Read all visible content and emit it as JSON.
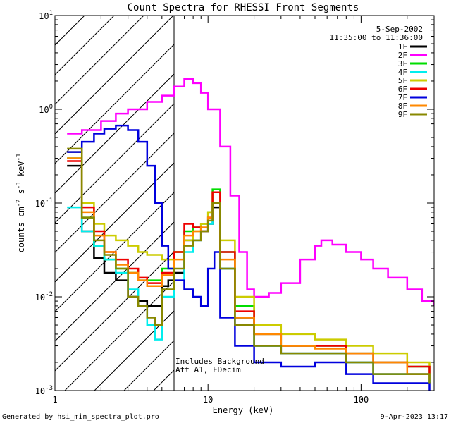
{
  "chart_data": {
    "type": "line",
    "title": "Count Spectra for RHESSI Front Segments",
    "xlabel": "Energy (keV)",
    "ylabel_parts": [
      "counts cm",
      "-2",
      " s",
      "-1",
      " keV",
      "-1"
    ],
    "xscale": "log",
    "yscale": "log",
    "xlim": [
      1,
      300
    ],
    "ylim": [
      0.001,
      10
    ],
    "x_ticks": [
      {
        "value": 1,
        "label": "1"
      },
      {
        "value": 10,
        "label": "10"
      },
      {
        "value": 100,
        "label": "100"
      }
    ],
    "y_ticks": [
      {
        "value": 0.001,
        "base": "10",
        "exp": "-3"
      },
      {
        "value": 0.01,
        "base": "10",
        "exp": "-2"
      },
      {
        "value": 0.1,
        "base": "10",
        "exp": "-1"
      },
      {
        "value": 1,
        "base": "10",
        "exp": "0"
      },
      {
        "value": 10,
        "base": "10",
        "exp": "1"
      }
    ],
    "date": "5-Sep-2002",
    "time_range": "11:35:00 to 11:36:00",
    "legend_position": "top-right",
    "shaded_region": {
      "x_start": 1,
      "x_end": 6
    },
    "annotations": [
      "Includes Background",
      "Att A1, FDecim"
    ],
    "footer_left": "Generated by hsi_min_spectra_plot.pro",
    "footer_right": "9-Apr-2023 13:17",
    "series": [
      {
        "name": "1F",
        "color": "#000000",
        "x": [
          1.2,
          1.5,
          1.8,
          2.1,
          2.5,
          3.0,
          3.5,
          4.0,
          5.0,
          5.5,
          6.0,
          7.0,
          8.0,
          9.0,
          10.0,
          10.7,
          12.0,
          15.0,
          20.0,
          30.0,
          50.0,
          80.0,
          120.0,
          200.0,
          280.0
        ],
        "y": [
          0.25,
          0.05,
          0.026,
          0.018,
          0.015,
          0.01,
          0.009,
          0.008,
          0.013,
          0.015,
          0.018,
          0.04,
          0.04,
          0.05,
          0.06,
          0.09,
          0.02,
          0.006,
          0.003,
          0.0025,
          0.0025,
          0.002,
          0.0015,
          0.0015,
          0.0012
        ]
      },
      {
        "name": "2F",
        "color": "#ff00ff",
        "x": [
          1.2,
          1.5,
          2.0,
          2.5,
          3.0,
          4.0,
          5.0,
          6.0,
          7.0,
          8.0,
          9.0,
          10.0,
          12.0,
          14.0,
          16.0,
          18.0,
          20.0,
          25.0,
          30.0,
          40.0,
          50.0,
          55.0,
          65.0,
          80.0,
          100.0,
          120.0,
          150.0,
          200.0,
          250.0,
          300.0
        ],
        "y": [
          0.55,
          0.6,
          0.75,
          0.9,
          1.0,
          1.2,
          1.4,
          1.75,
          2.1,
          1.9,
          1.5,
          1.0,
          0.4,
          0.12,
          0.03,
          0.012,
          0.01,
          0.011,
          0.014,
          0.025,
          0.035,
          0.04,
          0.036,
          0.03,
          0.025,
          0.02,
          0.016,
          0.012,
          0.009,
          0.008
        ]
      },
      {
        "name": "3F",
        "color": "#00dd00",
        "x": [
          1.2,
          1.5,
          1.8,
          2.1,
          2.5,
          3.0,
          3.5,
          4.0,
          5.0,
          6.0,
          7.0,
          8.0,
          9.0,
          10.0,
          10.7,
          12.0,
          15.0,
          20.0,
          30.0,
          50.0,
          80.0,
          120.0,
          200.0,
          280.0
        ],
        "y": [
          0.3,
          0.07,
          0.035,
          0.025,
          0.02,
          0.018,
          0.015,
          0.015,
          0.02,
          0.03,
          0.05,
          0.055,
          0.06,
          0.08,
          0.14,
          0.03,
          0.008,
          0.004,
          0.003,
          0.003,
          0.0025,
          0.002,
          0.0018,
          0.0015
        ]
      },
      {
        "name": "4F",
        "color": "#00eeee",
        "x": [
          1.2,
          1.5,
          1.8,
          2.1,
          2.5,
          3.0,
          3.5,
          4.0,
          4.5,
          5.0,
          6.0,
          7.0,
          8.0,
          9.0,
          10.0,
          10.7,
          12.0,
          15.0,
          20.0,
          30.0,
          50.0,
          80.0,
          120.0,
          200.0,
          280.0
        ],
        "y": [
          0.09,
          0.05,
          0.035,
          0.025,
          0.018,
          0.012,
          0.008,
          0.005,
          0.0035,
          0.01,
          0.015,
          0.03,
          0.04,
          0.05,
          0.06,
          0.1,
          0.02,
          0.005,
          0.003,
          0.0025,
          0.0025,
          0.002,
          0.0015,
          0.0015,
          0.0012
        ]
      },
      {
        "name": "5F",
        "color": "#cccc00",
        "x": [
          1.2,
          1.5,
          1.8,
          2.1,
          2.5,
          3.0,
          3.5,
          4.0,
          5.0,
          6.0,
          7.0,
          8.0,
          9.0,
          10.0,
          10.7,
          12.0,
          15.0,
          20.0,
          30.0,
          50.0,
          80.0,
          120.0,
          200.0,
          280.0
        ],
        "y": [
          0.35,
          0.1,
          0.06,
          0.045,
          0.04,
          0.035,
          0.03,
          0.028,
          0.025,
          0.03,
          0.04,
          0.05,
          0.06,
          0.08,
          0.13,
          0.04,
          0.01,
          0.005,
          0.004,
          0.0035,
          0.003,
          0.0025,
          0.002,
          0.0018
        ]
      },
      {
        "name": "6F",
        "color": "#ee0000",
        "x": [
          1.2,
          1.5,
          1.8,
          2.1,
          2.5,
          3.0,
          3.5,
          4.0,
          5.0,
          6.0,
          7.0,
          8.0,
          9.0,
          10.0,
          10.7,
          12.0,
          15.0,
          20.0,
          30.0,
          50.0,
          80.0,
          120.0,
          200.0,
          280.0
        ],
        "y": [
          0.28,
          0.09,
          0.05,
          0.03,
          0.025,
          0.02,
          0.016,
          0.014,
          0.018,
          0.03,
          0.06,
          0.055,
          0.05,
          0.07,
          0.13,
          0.03,
          0.007,
          0.004,
          0.003,
          0.003,
          0.0025,
          0.002,
          0.0018,
          0.0015
        ]
      },
      {
        "name": "7F",
        "color": "#0000dd",
        "x": [
          1.2,
          1.5,
          1.8,
          2.1,
          2.5,
          3.0,
          3.5,
          4.0,
          4.5,
          5.0,
          5.5,
          6.0,
          7.0,
          8.0,
          9.0,
          10.0,
          11.0,
          12.0,
          15.0,
          20.0,
          30.0,
          50.0,
          80.0,
          120.0,
          200.0,
          280.0
        ],
        "y": [
          0.35,
          0.45,
          0.55,
          0.62,
          0.67,
          0.6,
          0.45,
          0.25,
          0.1,
          0.035,
          0.02,
          0.015,
          0.012,
          0.01,
          0.008,
          0.02,
          0.03,
          0.006,
          0.003,
          0.002,
          0.0018,
          0.002,
          0.0015,
          0.0012,
          0.0012,
          0.001
        ]
      },
      {
        "name": "8F",
        "color": "#ff8800",
        "x": [
          1.2,
          1.5,
          1.8,
          2.1,
          2.5,
          3.0,
          3.5,
          4.0,
          5.0,
          6.0,
          7.0,
          8.0,
          9.0,
          10.0,
          10.7,
          12.0,
          15.0,
          20.0,
          30.0,
          50.0,
          80.0,
          120.0,
          200.0,
          280.0
        ],
        "y": [
          0.3,
          0.08,
          0.045,
          0.03,
          0.022,
          0.018,
          0.015,
          0.013,
          0.017,
          0.025,
          0.045,
          0.05,
          0.055,
          0.07,
          0.1,
          0.025,
          0.006,
          0.004,
          0.003,
          0.0028,
          0.0025,
          0.002,
          0.0015,
          0.0013
        ]
      },
      {
        "name": "9F",
        "color": "#888800",
        "x": [
          1.2,
          1.5,
          1.8,
          2.1,
          2.5,
          3.0,
          3.5,
          4.0,
          4.5,
          5.0,
          6.0,
          7.0,
          8.0,
          9.0,
          10.0,
          10.7,
          12.0,
          15.0,
          20.0,
          30.0,
          50.0,
          80.0,
          120.0,
          200.0,
          280.0
        ],
        "y": [
          0.38,
          0.07,
          0.04,
          0.028,
          0.02,
          0.01,
          0.008,
          0.006,
          0.005,
          0.012,
          0.02,
          0.035,
          0.04,
          0.05,
          0.065,
          0.1,
          0.02,
          0.005,
          0.003,
          0.0025,
          0.0025,
          0.002,
          0.0015,
          0.0015,
          0.0012
        ]
      }
    ]
  }
}
